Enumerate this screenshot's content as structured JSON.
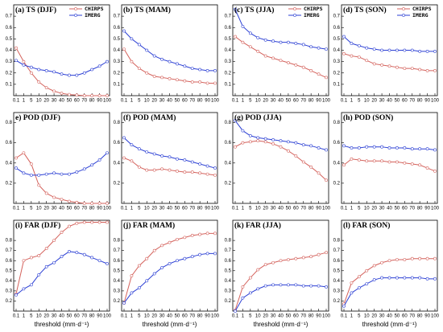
{
  "chart_data": [
    {
      "type": "line",
      "title": "(a) TS (DJF)",
      "categories": [
        "0.1",
        "1",
        "5",
        "10",
        "20",
        "30",
        "40",
        "50",
        "60",
        "70",
        "80",
        "90",
        "100"
      ],
      "ylim": [
        0,
        0.8
      ],
      "yticks": [
        0.1,
        0.2,
        0.3,
        0.4,
        0.5,
        0.6,
        0.7
      ],
      "legend": "upper right",
      "series": [
        {
          "name": "CHIRPS",
          "color": "#d4625c",
          "values": [
            0.42,
            0.3,
            0.2,
            0.12,
            0.07,
            0.04,
            0.02,
            0.01,
            0.005,
            0,
            0,
            0,
            0
          ]
        },
        {
          "name": "IMERG",
          "color": "#2b3fd4",
          "values": [
            0.31,
            0.27,
            0.25,
            0.23,
            0.22,
            0.21,
            0.19,
            0.18,
            0.18,
            0.2,
            0.23,
            0.26,
            0.3
          ]
        }
      ]
    },
    {
      "type": "line",
      "title": "(b) TS (MAM)",
      "categories": [
        "0.1",
        "1",
        "5",
        "10",
        "20",
        "30",
        "40",
        "50",
        "60",
        "70",
        "80",
        "90",
        "100"
      ],
      "ylim": [
        0,
        0.8
      ],
      "yticks": [
        0.1,
        0.2,
        0.3,
        0.4,
        0.5,
        0.6,
        0.7
      ],
      "series": [
        {
          "name": "CHIRPS",
          "color": "#d4625c",
          "values": [
            0.41,
            0.3,
            0.24,
            0.2,
            0.17,
            0.16,
            0.15,
            0.14,
            0.13,
            0.12,
            0.12,
            0.11,
            0.11
          ]
        },
        {
          "name": "IMERG",
          "color": "#2b3fd4",
          "values": [
            0.57,
            0.5,
            0.45,
            0.4,
            0.35,
            0.32,
            0.3,
            0.28,
            0.26,
            0.24,
            0.23,
            0.22,
            0.22
          ]
        }
      ]
    },
    {
      "type": "line",
      "title": "(c) TS (JJA)",
      "categories": [
        "0.1",
        "1",
        "5",
        "10",
        "20",
        "30",
        "40",
        "50",
        "60",
        "70",
        "80",
        "90",
        "100"
      ],
      "ylim": [
        0,
        0.8
      ],
      "yticks": [
        0.1,
        0.2,
        0.3,
        0.4,
        0.5,
        0.6,
        0.7
      ],
      "legend": "upper right",
      "series": [
        {
          "name": "CHIRPS",
          "color": "#d4625c",
          "values": [
            0.52,
            0.47,
            0.43,
            0.39,
            0.35,
            0.33,
            0.31,
            0.29,
            0.27,
            0.25,
            0.22,
            0.19,
            0.16
          ]
        },
        {
          "name": "IMERG",
          "color": "#2b3fd4",
          "values": [
            0.76,
            0.61,
            0.55,
            0.51,
            0.49,
            0.48,
            0.47,
            0.47,
            0.46,
            0.45,
            0.43,
            0.42,
            0.41
          ]
        }
      ]
    },
    {
      "type": "line",
      "title": "(d) TS (SON)",
      "categories": [
        "0.1",
        "1",
        "5",
        "10",
        "20",
        "30",
        "40",
        "50",
        "60",
        "70",
        "80",
        "90",
        "100"
      ],
      "ylim": [
        0,
        0.8
      ],
      "yticks": [
        0.1,
        0.2,
        0.3,
        0.4,
        0.5,
        0.6,
        0.7
      ],
      "legend": "upper right",
      "series": [
        {
          "name": "CHIRPS",
          "color": "#d4625c",
          "values": [
            0.37,
            0.35,
            0.34,
            0.31,
            0.28,
            0.27,
            0.26,
            0.25,
            0.24,
            0.24,
            0.23,
            0.22,
            0.22
          ]
        },
        {
          "name": "IMERG",
          "color": "#2b3fd4",
          "values": [
            0.52,
            0.46,
            0.44,
            0.42,
            0.41,
            0.4,
            0.4,
            0.4,
            0.4,
            0.4,
            0.39,
            0.39,
            0.39
          ]
        }
      ]
    },
    {
      "type": "line",
      "title": "e) POD (DJF)",
      "categories": [
        "0.1",
        "1",
        "5",
        "10",
        "20",
        "30",
        "40",
        "50",
        "60",
        "70",
        "80",
        "90",
        "100"
      ],
      "ylim": [
        0,
        0.9
      ],
      "yticks": [
        0.2,
        0.4,
        0.6,
        0.8
      ],
      "series": [
        {
          "name": "CHIRPS",
          "color": "#d4625c",
          "values": [
            0.45,
            0.5,
            0.39,
            0.18,
            0.1,
            0.06,
            0.04,
            0.02,
            0.01,
            0,
            0,
            0,
            0
          ]
        },
        {
          "name": "IMERG",
          "color": "#2b3fd4",
          "values": [
            0.35,
            0.3,
            0.28,
            0.28,
            0.29,
            0.3,
            0.29,
            0.29,
            0.31,
            0.34,
            0.38,
            0.43,
            0.5
          ]
        }
      ]
    },
    {
      "type": "line",
      "title": "(f) POD (MAM)",
      "categories": [
        "0.1",
        "1",
        "5",
        "10",
        "20",
        "30",
        "40",
        "50",
        "60",
        "70",
        "80",
        "90",
        "100"
      ],
      "ylim": [
        0,
        0.9
      ],
      "yticks": [
        0.2,
        0.4,
        0.6,
        0.8
      ],
      "series": [
        {
          "name": "CHIRPS",
          "color": "#d4625c",
          "values": [
            0.45,
            0.42,
            0.36,
            0.33,
            0.33,
            0.34,
            0.33,
            0.32,
            0.31,
            0.31,
            0.3,
            0.29,
            0.28
          ]
        },
        {
          "name": "IMERG",
          "color": "#2b3fd4",
          "values": [
            0.65,
            0.58,
            0.54,
            0.51,
            0.49,
            0.47,
            0.46,
            0.44,
            0.43,
            0.41,
            0.39,
            0.37,
            0.35
          ]
        }
      ]
    },
    {
      "type": "line",
      "title": "(g) POD (JJA)",
      "categories": [
        "0.1",
        "1",
        "5",
        "10",
        "20",
        "30",
        "40",
        "50",
        "60",
        "70",
        "80",
        "90",
        "100"
      ],
      "ylim": [
        0,
        0.9
      ],
      "yticks": [
        0.2,
        0.4,
        0.6,
        0.8
      ],
      "series": [
        {
          "name": "CHIRPS",
          "color": "#d4625c",
          "values": [
            0.56,
            0.6,
            0.61,
            0.62,
            0.61,
            0.59,
            0.56,
            0.52,
            0.47,
            0.41,
            0.36,
            0.3,
            0.23
          ]
        },
        {
          "name": "IMERG",
          "color": "#2b3fd4",
          "values": [
            0.82,
            0.72,
            0.67,
            0.65,
            0.64,
            0.63,
            0.62,
            0.61,
            0.6,
            0.58,
            0.57,
            0.55,
            0.53
          ]
        }
      ]
    },
    {
      "type": "line",
      "title": "(h) POD (SON)",
      "categories": [
        "0.1",
        "1",
        "5",
        "10",
        "20",
        "30",
        "40",
        "50",
        "60",
        "70",
        "80",
        "90",
        "100"
      ],
      "ylim": [
        0,
        0.9
      ],
      "yticks": [
        0.2,
        0.4,
        0.6,
        0.8
      ],
      "series": [
        {
          "name": "CHIRPS",
          "color": "#d4625c",
          "values": [
            0.38,
            0.44,
            0.43,
            0.42,
            0.42,
            0.42,
            0.41,
            0.41,
            0.4,
            0.39,
            0.38,
            0.35,
            0.32
          ]
        },
        {
          "name": "IMERG",
          "color": "#2b3fd4",
          "values": [
            0.57,
            0.55,
            0.55,
            0.56,
            0.56,
            0.56,
            0.55,
            0.55,
            0.55,
            0.54,
            0.54,
            0.54,
            0.53
          ]
        }
      ]
    },
    {
      "type": "line",
      "title": "(i) FAR (DJF)",
      "xlabel": "threshold (mm·d⁻¹)",
      "categories": [
        "0.1",
        "1",
        "5",
        "10",
        "20",
        "30",
        "40",
        "50",
        "60",
        "70",
        "80",
        "90",
        "100"
      ],
      "ylim": [
        0.1,
        1.0
      ],
      "yticks": [
        0.2,
        0.3,
        0.4,
        0.5,
        0.6,
        0.7,
        0.8
      ],
      "series": [
        {
          "name": "CHIRPS",
          "color": "#d4625c",
          "values": [
            0.27,
            0.6,
            0.63,
            0.65,
            0.72,
            0.8,
            0.88,
            0.94,
            0.97,
            0.98,
            0.98,
            0.98,
            0.98
          ]
        },
        {
          "name": "IMERG",
          "color": "#2b3fd4",
          "values": [
            0.26,
            0.32,
            0.36,
            0.46,
            0.54,
            0.58,
            0.64,
            0.69,
            0.68,
            0.66,
            0.63,
            0.6,
            0.57
          ]
        }
      ]
    },
    {
      "type": "line",
      "title": "(j) FAR (MAM)",
      "xlabel": "threshold (mm·d⁻¹)",
      "categories": [
        "0.1",
        "1",
        "5",
        "10",
        "20",
        "30",
        "40",
        "50",
        "60",
        "70",
        "80",
        "90",
        "100"
      ],
      "ylim": [
        0.1,
        1.0
      ],
      "yticks": [
        0.2,
        0.3,
        0.4,
        0.5,
        0.6,
        0.7,
        0.8
      ],
      "series": [
        {
          "name": "CHIRPS",
          "color": "#d4625c",
          "values": [
            0.18,
            0.45,
            0.55,
            0.62,
            0.7,
            0.75,
            0.78,
            0.81,
            0.83,
            0.85,
            0.86,
            0.87,
            0.87
          ]
        },
        {
          "name": "IMERG",
          "color": "#2b3fd4",
          "values": [
            0.18,
            0.28,
            0.33,
            0.4,
            0.47,
            0.53,
            0.57,
            0.6,
            0.62,
            0.64,
            0.66,
            0.67,
            0.67
          ]
        }
      ]
    },
    {
      "type": "line",
      "title": "(k) FAR (JJA)",
      "xlabel": "threshold (mm·d⁻¹)",
      "categories": [
        "0.1",
        "1",
        "5",
        "10",
        "20",
        "30",
        "40",
        "50",
        "60",
        "70",
        "80",
        "90",
        "100"
      ],
      "ylim": [
        0.1,
        1.0
      ],
      "yticks": [
        0.2,
        0.3,
        0.4,
        0.5,
        0.6,
        0.7,
        0.8
      ],
      "series": [
        {
          "name": "CHIRPS",
          "color": "#d4625c",
          "values": [
            0.11,
            0.34,
            0.43,
            0.51,
            0.56,
            0.58,
            0.6,
            0.61,
            0.62,
            0.63,
            0.64,
            0.66,
            0.68
          ]
        },
        {
          "name": "IMERG",
          "color": "#2b3fd4",
          "values": [
            0.1,
            0.23,
            0.28,
            0.32,
            0.35,
            0.36,
            0.36,
            0.36,
            0.36,
            0.35,
            0.35,
            0.35,
            0.34
          ]
        }
      ]
    },
    {
      "type": "line",
      "title": "(l) FAR (SON)",
      "xlabel": "threshold (mm·d⁻¹)",
      "categories": [
        "0.1",
        "1",
        "5",
        "10",
        "20",
        "30",
        "40",
        "50",
        "60",
        "70",
        "80",
        "90",
        "100"
      ],
      "ylim": [
        0.1,
        1.0
      ],
      "yticks": [
        0.2,
        0.3,
        0.4,
        0.5,
        0.6,
        0.7,
        0.8
      ],
      "series": [
        {
          "name": "CHIRPS",
          "color": "#d4625c",
          "values": [
            0.17,
            0.38,
            0.44,
            0.5,
            0.55,
            0.58,
            0.6,
            0.61,
            0.61,
            0.62,
            0.62,
            0.62,
            0.62
          ]
        },
        {
          "name": "IMERG",
          "color": "#2b3fd4",
          "values": [
            0.15,
            0.28,
            0.33,
            0.37,
            0.41,
            0.43,
            0.43,
            0.43,
            0.43,
            0.43,
            0.43,
            0.42,
            0.42
          ]
        }
      ]
    }
  ]
}
